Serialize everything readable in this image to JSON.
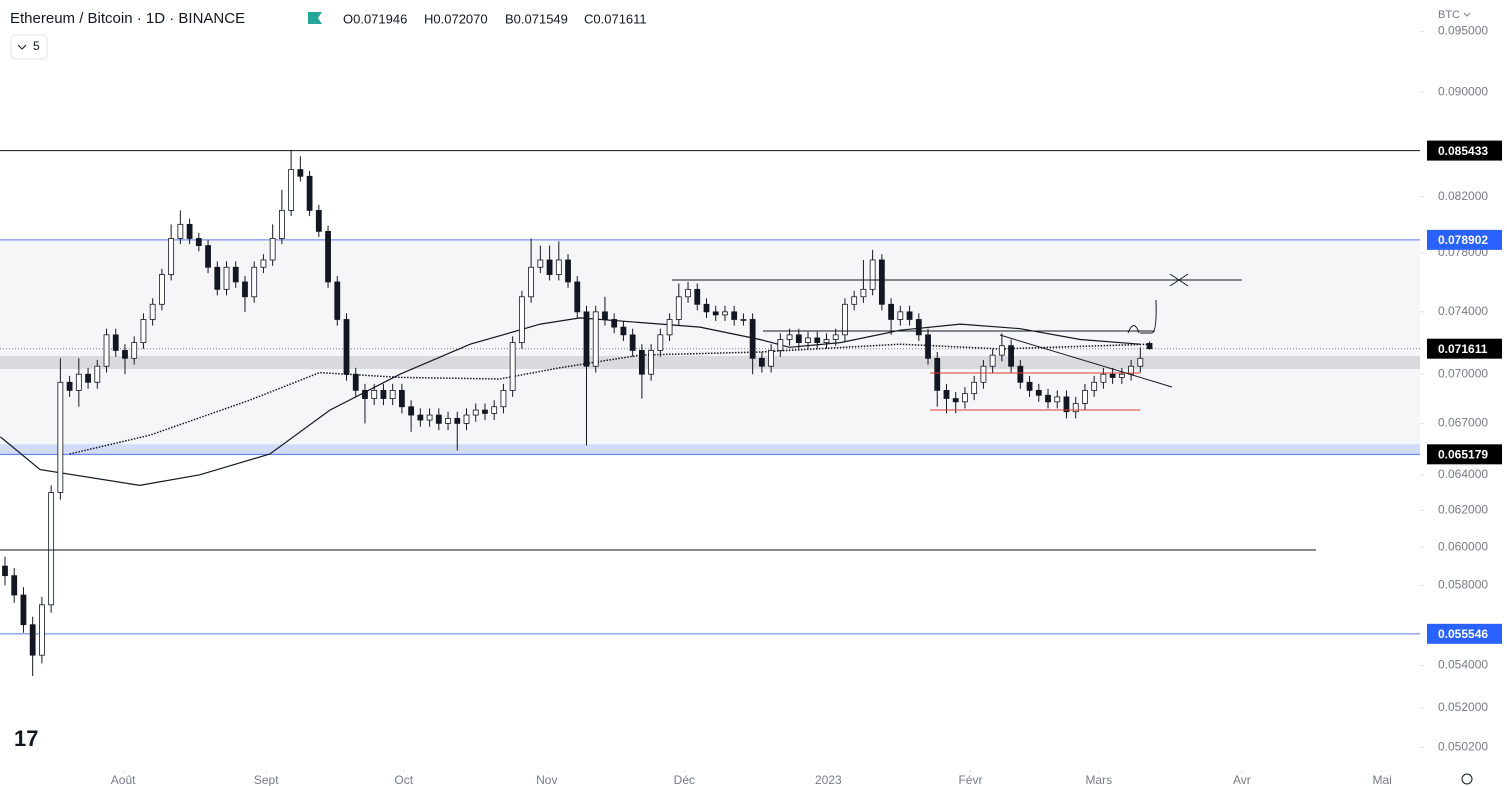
{
  "header": {
    "symbol": "Ethereum / Bitcoin · 1D · BINANCE",
    "ohlc": [
      "O0.071946",
      "H0.072070",
      "B0.071549",
      "C0.071611"
    ],
    "intervals": "5",
    "currency": "BTC"
  },
  "chart_data": {
    "type": "candlestick",
    "log_scale": true,
    "up_color": "#ffffff",
    "down_color": "#131722",
    "edge_color": "#131722",
    "ylim": [
      0.0492,
      0.0977
    ],
    "yticks": [
      {
        "value": 0.095,
        "label": "0.095000"
      },
      {
        "value": 0.09,
        "label": "0.090000"
      },
      {
        "value": 0.082,
        "label": "0.082000"
      },
      {
        "value": 0.078,
        "label": "0.078000"
      },
      {
        "value": 0.074,
        "label": "0.074000"
      },
      {
        "value": 0.07,
        "label": "0.070000"
      },
      {
        "value": 0.067,
        "label": "0.067000"
      },
      {
        "value": 0.064,
        "label": "0.064000"
      },
      {
        "value": 0.062,
        "label": "0.062000"
      },
      {
        "value": 0.06,
        "label": "0.060000"
      },
      {
        "value": 0.058,
        "label": "0.058000"
      },
      {
        "value": 0.054,
        "label": "0.054000"
      },
      {
        "value": 0.052,
        "label": "0.052000"
      },
      {
        "value": 0.0502,
        "label": "0.050200"
      }
    ],
    "xlim": [
      -0.54,
      153.3
    ],
    "xticks": [
      {
        "value": 12.8,
        "label": "Août"
      },
      {
        "value": 28.3,
        "label": "Sept"
      },
      {
        "value": 43.2,
        "label": "Oct"
      },
      {
        "value": 58.7,
        "label": "Nov"
      },
      {
        "value": 73.6,
        "label": "Déc"
      },
      {
        "value": 89.2,
        "label": "2023"
      },
      {
        "value": 104.6,
        "label": "Févr"
      },
      {
        "value": 118.5,
        "label": "Mars"
      },
      {
        "value": 134,
        "label": "Avr"
      },
      {
        "value": 149.2,
        "label": "Mai"
      }
    ],
    "ohlc": [
      [
        0.059,
        0.0595,
        0.058,
        0.0585
      ],
      [
        0.0585,
        0.0589,
        0.0571,
        0.0575
      ],
      [
        0.0575,
        0.0579,
        0.0556,
        0.056
      ],
      [
        0.056,
        0.0564,
        0.0535,
        0.0545
      ],
      [
        0.0545,
        0.0574,
        0.0541,
        0.057
      ],
      [
        0.057,
        0.0634,
        0.0566,
        0.063
      ],
      [
        0.063,
        0.071,
        0.0626,
        0.0695
      ],
      [
        0.0695,
        0.0699,
        0.0686,
        0.069
      ],
      [
        0.069,
        0.071,
        0.068,
        0.07
      ],
      [
        0.07,
        0.0704,
        0.0691,
        0.0695
      ],
      [
        0.0695,
        0.0709,
        0.0691,
        0.0705
      ],
      [
        0.0705,
        0.0729,
        0.0701,
        0.0725
      ],
      [
        0.0725,
        0.0729,
        0.0711,
        0.0715
      ],
      [
        0.0715,
        0.0719,
        0.07,
        0.071
      ],
      [
        0.071,
        0.0724,
        0.0706,
        0.072
      ],
      [
        0.072,
        0.0739,
        0.0716,
        0.0735
      ],
      [
        0.0735,
        0.0749,
        0.0731,
        0.0745
      ],
      [
        0.0745,
        0.0769,
        0.0741,
        0.0765
      ],
      [
        0.0765,
        0.08,
        0.0761,
        0.079
      ],
      [
        0.079,
        0.081,
        0.0786,
        0.08
      ],
      [
        0.08,
        0.0804,
        0.0786,
        0.079
      ],
      [
        0.079,
        0.0794,
        0.0781,
        0.0785
      ],
      [
        0.0785,
        0.0789,
        0.0766,
        0.077
      ],
      [
        0.077,
        0.0774,
        0.0751,
        0.0755
      ],
      [
        0.0755,
        0.0774,
        0.0751,
        0.077
      ],
      [
        0.077,
        0.0774,
        0.0756,
        0.076
      ],
      [
        0.076,
        0.0764,
        0.074,
        0.075
      ],
      [
        0.075,
        0.0774,
        0.0746,
        0.077
      ],
      [
        0.077,
        0.0779,
        0.0766,
        0.0775
      ],
      [
        0.0775,
        0.08,
        0.0771,
        0.079
      ],
      [
        0.079,
        0.0825,
        0.0786,
        0.081
      ],
      [
        0.081,
        0.0855,
        0.0806,
        0.084
      ],
      [
        0.084,
        0.085,
        0.0831,
        0.0835
      ],
      [
        0.0835,
        0.0839,
        0.0806,
        0.081
      ],
      [
        0.081,
        0.0814,
        0.0791,
        0.0795
      ],
      [
        0.0795,
        0.0799,
        0.0756,
        0.076
      ],
      [
        0.076,
        0.0764,
        0.0731,
        0.0735
      ],
      [
        0.0735,
        0.0739,
        0.0696,
        0.07
      ],
      [
        0.07,
        0.0704,
        0.0686,
        0.069
      ],
      [
        0.069,
        0.0694,
        0.067,
        0.0685
      ],
      [
        0.0685,
        0.0694,
        0.0681,
        0.069
      ],
      [
        0.069,
        0.0694,
        0.0681,
        0.0685
      ],
      [
        0.0685,
        0.0694,
        0.0681,
        0.069
      ],
      [
        0.069,
        0.0694,
        0.0676,
        0.068
      ],
      [
        0.068,
        0.0684,
        0.0665,
        0.0675
      ],
      [
        0.0675,
        0.0679,
        0.0668,
        0.0672
      ],
      [
        0.0672,
        0.0679,
        0.0668,
        0.0675
      ],
      [
        0.0675,
        0.0679,
        0.0666,
        0.067
      ],
      [
        0.067,
        0.0677,
        0.0666,
        0.0673
      ],
      [
        0.0673,
        0.0677,
        0.0654,
        0.067
      ],
      [
        0.067,
        0.0679,
        0.0666,
        0.0675
      ],
      [
        0.0675,
        0.0682,
        0.0671,
        0.0678
      ],
      [
        0.0678,
        0.0682,
        0.0672,
        0.0676
      ],
      [
        0.0676,
        0.0684,
        0.0672,
        0.068
      ],
      [
        0.068,
        0.0694,
        0.0676,
        0.069
      ],
      [
        0.069,
        0.0724,
        0.0686,
        0.072
      ],
      [
        0.072,
        0.0754,
        0.0716,
        0.075
      ],
      [
        0.075,
        0.079,
        0.0746,
        0.077
      ],
      [
        0.077,
        0.0785,
        0.0766,
        0.0775
      ],
      [
        0.0775,
        0.0785,
        0.0761,
        0.0765
      ],
      [
        0.0765,
        0.0788,
        0.0761,
        0.0775
      ],
      [
        0.0775,
        0.0779,
        0.0756,
        0.076
      ],
      [
        0.076,
        0.0764,
        0.0736,
        0.074
      ],
      [
        0.074,
        0.0744,
        0.0657,
        0.0705
      ],
      [
        0.0705,
        0.0744,
        0.0701,
        0.074
      ],
      [
        0.074,
        0.075,
        0.0731,
        0.0735
      ],
      [
        0.0735,
        0.0739,
        0.0726,
        0.073
      ],
      [
        0.073,
        0.0734,
        0.0721,
        0.0725
      ],
      [
        0.0725,
        0.0729,
        0.0711,
        0.0715
      ],
      [
        0.0715,
        0.0719,
        0.0685,
        0.07
      ],
      [
        0.07,
        0.0719,
        0.0696,
        0.0715
      ],
      [
        0.0715,
        0.0729,
        0.0711,
        0.0725
      ],
      [
        0.0725,
        0.0739,
        0.0721,
        0.0735
      ],
      [
        0.0735,
        0.0759,
        0.0731,
        0.075
      ],
      [
        0.075,
        0.076,
        0.0746,
        0.0755
      ],
      [
        0.0755,
        0.0759,
        0.0741,
        0.0745
      ],
      [
        0.0745,
        0.0749,
        0.0736,
        0.074
      ],
      [
        0.074,
        0.0744,
        0.0734,
        0.0738
      ],
      [
        0.0738,
        0.0744,
        0.0734,
        0.074
      ],
      [
        0.074,
        0.0744,
        0.0731,
        0.0735
      ],
      [
        0.0735,
        0.0739,
        0.0731,
        0.0735
      ],
      [
        0.0735,
        0.0739,
        0.07,
        0.071
      ],
      [
        0.071,
        0.0714,
        0.0701,
        0.0705
      ],
      [
        0.0705,
        0.0719,
        0.0701,
        0.0715
      ],
      [
        0.0715,
        0.0726,
        0.0711,
        0.0722
      ],
      [
        0.0722,
        0.0729,
        0.0718,
        0.0725
      ],
      [
        0.0725,
        0.0729,
        0.0716,
        0.072
      ],
      [
        0.072,
        0.0727,
        0.0716,
        0.0723
      ],
      [
        0.0723,
        0.0727,
        0.0716,
        0.072
      ],
      [
        0.072,
        0.0726,
        0.0716,
        0.0722
      ],
      [
        0.0722,
        0.0729,
        0.0718,
        0.0725
      ],
      [
        0.0725,
        0.0749,
        0.0721,
        0.0745
      ],
      [
        0.0745,
        0.0754,
        0.0741,
        0.075
      ],
      [
        0.075,
        0.0775,
        0.0746,
        0.0755
      ],
      [
        0.0755,
        0.0782,
        0.0751,
        0.0775
      ],
      [
        0.0775,
        0.0779,
        0.0741,
        0.0745
      ],
      [
        0.0745,
        0.0749,
        0.0725,
        0.0735
      ],
      [
        0.0735,
        0.0744,
        0.0731,
        0.074
      ],
      [
        0.074,
        0.0744,
        0.0731,
        0.0735
      ],
      [
        0.0735,
        0.0739,
        0.0721,
        0.0725
      ],
      [
        0.0725,
        0.0729,
        0.0706,
        0.071
      ],
      [
        0.071,
        0.0714,
        0.068,
        0.069
      ],
      [
        0.069,
        0.0694,
        0.0676,
        0.0685
      ],
      [
        0.0685,
        0.0689,
        0.0676,
        0.0683
      ],
      [
        0.0683,
        0.0692,
        0.0679,
        0.0688
      ],
      [
        0.0688,
        0.0699,
        0.0684,
        0.0695
      ],
      [
        0.0695,
        0.0709,
        0.0691,
        0.0705
      ],
      [
        0.0705,
        0.0716,
        0.0701,
        0.0712
      ],
      [
        0.0712,
        0.0726,
        0.0708,
        0.0718
      ],
      [
        0.0718,
        0.0722,
        0.0701,
        0.0705
      ],
      [
        0.0705,
        0.0709,
        0.0691,
        0.0695
      ],
      [
        0.0695,
        0.0699,
        0.0686,
        0.069
      ],
      [
        0.069,
        0.0694,
        0.0683,
        0.0687
      ],
      [
        0.0687,
        0.0691,
        0.0679,
        0.0683
      ],
      [
        0.0683,
        0.069,
        0.0679,
        0.0686
      ],
      [
        0.0686,
        0.069,
        0.0673,
        0.0677
      ],
      [
        0.0677,
        0.0686,
        0.0673,
        0.0682
      ],
      [
        0.0682,
        0.0694,
        0.0678,
        0.069
      ],
      [
        0.069,
        0.0699,
        0.0686,
        0.0695
      ],
      [
        0.0695,
        0.0704,
        0.0691,
        0.07
      ],
      [
        0.07,
        0.0704,
        0.0694,
        0.0698
      ],
      [
        0.0698,
        0.0704,
        0.0694,
        0.07
      ],
      [
        0.07,
        0.0709,
        0.0696,
        0.0705
      ],
      [
        0.0705,
        0.0717,
        0.0701,
        0.071
      ],
      [
        0.071946,
        0.07207,
        0.071549,
        0.071611
      ]
    ],
    "lines": [
      {
        "style": "solid",
        "color": "#131722",
        "x": [
          -0.5,
          3.8,
          14.6,
          21.1,
          28.7,
          35.2,
          42.8,
          50.4,
          58,
          62.3,
          68.8,
          75.3,
          81.8,
          85,
          90.5,
          97,
          103.5,
          110,
          116.5,
          123
        ],
        "values": [
          0.0662,
          0.0643,
          0.0634,
          0.064,
          0.0652,
          0.0678,
          0.07,
          0.0719,
          0.0732,
          0.0736,
          0.0733,
          0.073,
          0.0722,
          0.0717,
          0.072,
          0.0728,
          0.0732,
          0.0729,
          0.0722,
          0.0719
        ]
      },
      {
        "style": "dotted",
        "color": "#131722",
        "x": [
          7,
          15.7,
          26.5,
          34.1,
          42.8,
          53.6,
          60.1,
          68.8,
          81.8,
          97,
          107.8,
          124
        ],
        "values": [
          0.0652,
          0.0663,
          0.0684,
          0.0701,
          0.0698,
          0.0697,
          0.0704,
          0.0712,
          0.0714,
          0.0719,
          0.0716,
          0.0719
        ]
      }
    ],
    "levels": [
      {
        "value": 0.085433,
        "style": "line",
        "color": "#131722",
        "label_bg": "#000000"
      },
      {
        "value": 0.078902,
        "style": "line",
        "color": "#5b7ce6",
        "label_bg": "#2962ff"
      },
      {
        "value": 0.071611,
        "style": "dotted",
        "color": "#787b86",
        "label_bg": "#000000"
      },
      {
        "value": 0.065179,
        "style": "band",
        "color": "#5b7ce6",
        "label_bg": "#000000"
      },
      {
        "value": 0.055546,
        "style": "line",
        "color": "#5b7ce6",
        "label_bg": "#2962ff"
      }
    ]
  }
}
